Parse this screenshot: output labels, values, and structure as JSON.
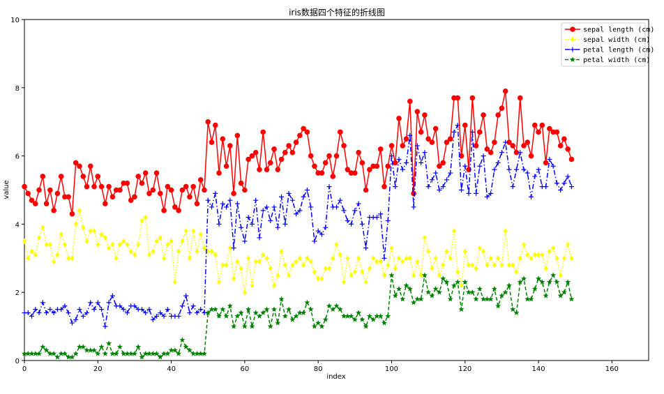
{
  "chart_data": {
    "type": "line",
    "title": "iris数据四个特征的折线图",
    "xlabel": "index",
    "ylabel": "value",
    "xlim": [
      0,
      170
    ],
    "ylim": [
      0,
      10
    ],
    "x_ticks": [
      0,
      20,
      40,
      60,
      80,
      100,
      120,
      140,
      160
    ],
    "y_ticks": [
      0,
      2,
      4,
      6,
      8,
      10
    ],
    "grid": false,
    "legend_position": "top-right",
    "series": [
      {
        "name": "sepal length (cm)",
        "color": "#ff0000",
        "line_style": "solid",
        "marker": "circle",
        "values": [
          5.1,
          4.9,
          4.7,
          4.6,
          5.0,
          5.4,
          4.6,
          5.0,
          4.4,
          4.9,
          5.4,
          4.8,
          4.8,
          4.3,
          5.8,
          5.7,
          5.4,
          5.1,
          5.7,
          5.1,
          5.4,
          5.1,
          4.6,
          5.1,
          4.8,
          5.0,
          5.0,
          5.2,
          5.2,
          4.7,
          4.8,
          5.4,
          5.2,
          5.5,
          4.9,
          5.0,
          5.5,
          4.9,
          4.4,
          5.1,
          5.0,
          4.5,
          4.4,
          5.0,
          5.1,
          4.8,
          5.1,
          4.6,
          5.3,
          5.0,
          7.0,
          6.4,
          6.9,
          5.5,
          6.5,
          5.7,
          6.3,
          4.9,
          6.6,
          5.2,
          5.0,
          5.9,
          6.0,
          6.1,
          5.6,
          6.7,
          5.6,
          5.8,
          6.2,
          5.6,
          5.9,
          6.1,
          6.3,
          6.1,
          6.4,
          6.6,
          6.8,
          6.7,
          6.0,
          5.7,
          5.5,
          5.5,
          5.8,
          6.0,
          5.4,
          6.0,
          6.7,
          6.3,
          5.6,
          5.5,
          5.5,
          6.1,
          5.8,
          5.0,
          5.6,
          5.7,
          5.7,
          6.2,
          5.1,
          5.7,
          6.3,
          5.8,
          7.1,
          6.3,
          6.5,
          7.6,
          4.9,
          7.3,
          6.7,
          7.2,
          6.5,
          6.4,
          6.8,
          5.7,
          5.8,
          6.4,
          6.5,
          7.7,
          7.7,
          6.0,
          6.9,
          5.6,
          7.7,
          6.3,
          6.7,
          7.2,
          6.2,
          6.1,
          6.4,
          7.2,
          7.4,
          7.9,
          6.4,
          6.3,
          6.1,
          7.7,
          6.3,
          6.4,
          6.0,
          6.9,
          6.7,
          6.9,
          5.8,
          6.8,
          6.7,
          6.7,
          6.3,
          6.5,
          6.2,
          5.9
        ]
      },
      {
        "name": "sepal width (cm)",
        "color": "#ffff00",
        "line_style": "dotted",
        "marker": "diamond",
        "values": [
          3.5,
          3.0,
          3.2,
          3.1,
          3.6,
          3.9,
          3.4,
          3.4,
          2.9,
          3.1,
          3.7,
          3.4,
          3.0,
          3.0,
          4.0,
          4.4,
          3.9,
          3.5,
          3.8,
          3.8,
          3.4,
          3.7,
          3.6,
          3.3,
          3.4,
          3.0,
          3.4,
          3.5,
          3.4,
          3.2,
          3.1,
          3.4,
          4.1,
          4.2,
          3.1,
          3.2,
          3.5,
          3.6,
          3.0,
          3.4,
          3.5,
          2.3,
          3.2,
          3.5,
          3.8,
          3.0,
          3.8,
          3.2,
          3.7,
          3.3,
          3.2,
          3.2,
          3.1,
          2.3,
          2.8,
          2.8,
          3.3,
          2.4,
          2.9,
          2.7,
          2.0,
          3.0,
          2.2,
          2.9,
          2.9,
          3.1,
          3.0,
          2.7,
          2.2,
          2.5,
          3.2,
          2.8,
          2.5,
          2.8,
          2.9,
          3.0,
          2.8,
          3.0,
          2.9,
          2.6,
          2.4,
          2.4,
          2.7,
          2.7,
          3.0,
          3.4,
          3.1,
          2.3,
          3.0,
          2.5,
          2.6,
          3.0,
          2.6,
          2.3,
          2.7,
          3.0,
          2.9,
          2.9,
          2.5,
          2.8,
          3.3,
          2.7,
          3.0,
          2.9,
          3.0,
          3.0,
          2.5,
          2.9,
          2.5,
          3.6,
          3.2,
          2.7,
          3.0,
          2.5,
          2.8,
          3.2,
          3.0,
          3.8,
          2.6,
          2.2,
          3.2,
          2.8,
          2.8,
          2.7,
          3.3,
          3.2,
          2.8,
          3.0,
          2.8,
          3.0,
          2.8,
          3.8,
          2.8,
          2.8,
          2.6,
          3.0,
          3.4,
          3.1,
          3.0,
          3.1,
          3.1,
          3.1,
          2.7,
          3.2,
          3.3,
          3.0,
          2.5,
          3.0,
          3.4,
          3.0
        ]
      },
      {
        "name": "petal length (cm)",
        "color": "#0000ff",
        "line_style": "dashdot",
        "marker": "plus",
        "values": [
          1.4,
          1.4,
          1.3,
          1.5,
          1.4,
          1.7,
          1.4,
          1.5,
          1.4,
          1.5,
          1.5,
          1.6,
          1.4,
          1.1,
          1.2,
          1.5,
          1.3,
          1.4,
          1.7,
          1.5,
          1.7,
          1.5,
          1.0,
          1.7,
          1.9,
          1.6,
          1.6,
          1.5,
          1.4,
          1.6,
          1.6,
          1.5,
          1.5,
          1.4,
          1.5,
          1.2,
          1.3,
          1.4,
          1.3,
          1.5,
          1.3,
          1.3,
          1.3,
          1.6,
          1.9,
          1.4,
          1.6,
          1.4,
          1.5,
          1.4,
          4.7,
          4.5,
          4.9,
          4.0,
          4.6,
          4.5,
          4.7,
          3.3,
          4.6,
          3.9,
          3.5,
          4.2,
          4.0,
          4.7,
          3.6,
          4.4,
          4.5,
          4.1,
          4.5,
          3.9,
          4.8,
          4.0,
          4.9,
          4.7,
          4.3,
          4.4,
          4.8,
          5.0,
          4.5,
          3.5,
          3.8,
          3.7,
          3.9,
          5.1,
          4.5,
          4.5,
          4.7,
          4.4,
          4.1,
          4.0,
          4.4,
          4.6,
          4.0,
          3.3,
          4.2,
          4.2,
          4.2,
          4.3,
          3.0,
          4.1,
          6.0,
          5.1,
          5.9,
          5.6,
          5.8,
          6.6,
          4.5,
          6.3,
          5.8,
          6.1,
          5.1,
          5.3,
          5.5,
          5.0,
          5.1,
          5.3,
          5.5,
          6.7,
          6.9,
          5.0,
          5.7,
          4.9,
          6.7,
          4.9,
          5.7,
          6.0,
          4.8,
          4.9,
          5.6,
          5.8,
          6.1,
          6.4,
          5.6,
          5.1,
          5.6,
          6.1,
          5.6,
          5.5,
          4.8,
          5.4,
          5.6,
          5.1,
          5.1,
          5.9,
          5.7,
          5.2,
          5.0,
          5.2,
          5.4,
          5.1
        ]
      },
      {
        "name": "petal width (cm)",
        "color": "#008000",
        "line_style": "dashed",
        "marker": "star",
        "values": [
          0.2,
          0.2,
          0.2,
          0.2,
          0.2,
          0.4,
          0.3,
          0.2,
          0.2,
          0.1,
          0.2,
          0.2,
          0.1,
          0.1,
          0.2,
          0.4,
          0.4,
          0.3,
          0.3,
          0.3,
          0.2,
          0.4,
          0.2,
          0.5,
          0.2,
          0.2,
          0.4,
          0.2,
          0.2,
          0.2,
          0.2,
          0.4,
          0.1,
          0.2,
          0.2,
          0.2,
          0.2,
          0.1,
          0.2,
          0.2,
          0.3,
          0.3,
          0.2,
          0.6,
          0.4,
          0.3,
          0.2,
          0.2,
          0.2,
          0.2,
          1.4,
          1.5,
          1.5,
          1.3,
          1.5,
          1.3,
          1.6,
          1.0,
          1.3,
          1.4,
          1.0,
          1.5,
          1.0,
          1.4,
          1.3,
          1.4,
          1.5,
          1.0,
          1.5,
          1.1,
          1.8,
          1.3,
          1.5,
          1.2,
          1.3,
          1.4,
          1.4,
          1.7,
          1.5,
          1.0,
          1.1,
          1.0,
          1.2,
          1.6,
          1.5,
          1.6,
          1.5,
          1.3,
          1.3,
          1.3,
          1.2,
          1.4,
          1.2,
          1.0,
          1.3,
          1.2,
          1.3,
          1.3,
          1.1,
          1.3,
          2.5,
          1.9,
          2.1,
          1.8,
          2.2,
          2.1,
          1.7,
          1.8,
          1.8,
          2.5,
          2.0,
          1.9,
          2.1,
          2.0,
          2.4,
          2.3,
          1.8,
          2.2,
          2.3,
          1.5,
          2.3,
          2.0,
          2.0,
          1.8,
          2.1,
          1.8,
          1.8,
          1.8,
          2.1,
          1.6,
          1.9,
          2.0,
          2.2,
          1.5,
          1.4,
          2.3,
          2.4,
          1.8,
          1.8,
          2.1,
          2.4,
          2.3,
          1.9,
          2.3,
          2.5,
          2.3,
          1.9,
          2.0,
          2.3,
          1.8
        ]
      }
    ]
  }
}
